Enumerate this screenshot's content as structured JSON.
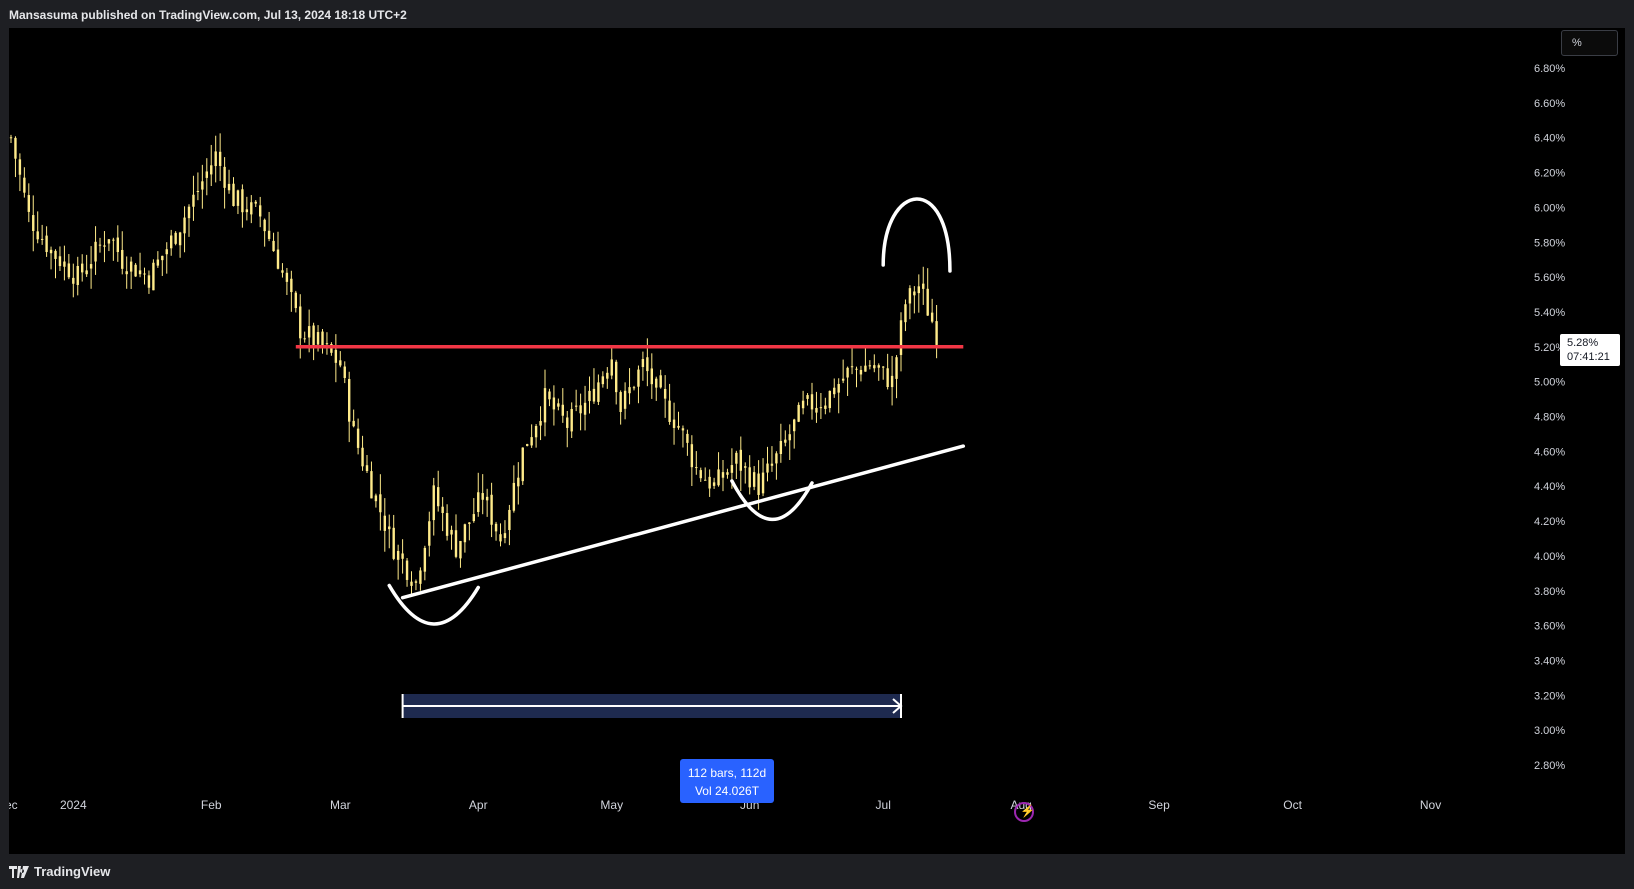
{
  "header": {
    "published": "Mansasuma published on TradingView.com, Jul 13, 2024 18:18 UTC+2"
  },
  "footer": {
    "brand": "TradingView"
  },
  "price_scale": {
    "unit_button": "%"
  },
  "last_price": {
    "value": "5.28%",
    "countdown": "07:41:21"
  },
  "measure": {
    "line1": "112 bars, 112d",
    "line2": "Vol 24.026T"
  },
  "colors": {
    "background": "#000000",
    "candle": "#ffeb8a",
    "resistance": "#f23645",
    "drawing": "#ffffff",
    "measure": "#2962ff"
  },
  "icons": {
    "bolt": "lightning-icon",
    "logo": "tradingview-logo-icon"
  },
  "chart_data": {
    "type": "candlestick",
    "y_unit": "%",
    "ylim": [
      2.7,
      6.9
    ],
    "y_ticks": [
      "6.80%",
      "6.60%",
      "6.40%",
      "6.20%",
      "6.00%",
      "5.80%",
      "5.60%",
      "5.40%",
      "5.20%",
      "5.00%",
      "4.80%",
      "4.60%",
      "4.40%",
      "4.20%",
      "4.00%",
      "3.80%",
      "3.60%",
      "3.40%",
      "3.20%",
      "3.00%",
      "2.80%"
    ],
    "x_ticks": [
      "ec",
      "2024",
      "Feb",
      "Mar",
      "Apr",
      "May",
      "Jun",
      "Jul",
      "Aug",
      "Sep",
      "Oct",
      "Nov"
    ],
    "close_path": [
      [
        "2023-12-18",
        6.4
      ],
      [
        "2023-12-22",
        5.95
      ],
      [
        "2023-12-27",
        5.75
      ],
      [
        "2024-01-02",
        5.6
      ],
      [
        "2024-01-09",
        5.85
      ],
      [
        "2024-01-12",
        5.7
      ],
      [
        "2024-01-18",
        5.6
      ],
      [
        "2024-01-24",
        5.85
      ],
      [
        "2024-01-30",
        6.15
      ],
      [
        "2024-02-02",
        6.3
      ],
      [
        "2024-02-06",
        6.05
      ],
      [
        "2024-02-12",
        5.95
      ],
      [
        "2024-02-16",
        5.7
      ],
      [
        "2024-02-21",
        5.3
      ],
      [
        "2024-02-26",
        5.2
      ],
      [
        "2024-03-01",
        5.1
      ],
      [
        "2024-03-04",
        4.7
      ],
      [
        "2024-03-08",
        4.4
      ],
      [
        "2024-03-13",
        4.05
      ],
      [
        "2024-03-18",
        3.85
      ],
      [
        "2024-03-22",
        4.35
      ],
      [
        "2024-03-27",
        4.05
      ],
      [
        "2024-04-02",
        4.35
      ],
      [
        "2024-04-06",
        4.1
      ],
      [
        "2024-04-11",
        4.6
      ],
      [
        "2024-04-16",
        4.9
      ],
      [
        "2024-04-21",
        4.75
      ],
      [
        "2024-04-26",
        4.9
      ],
      [
        "2024-05-01",
        5.15
      ],
      [
        "2024-05-03",
        4.85
      ],
      [
        "2024-05-08",
        5.1
      ],
      [
        "2024-05-12",
        4.9
      ],
      [
        "2024-05-16",
        4.75
      ],
      [
        "2024-05-20",
        4.5
      ],
      [
        "2024-05-24",
        4.4
      ],
      [
        "2024-05-29",
        4.55
      ],
      [
        "2024-06-03",
        4.4
      ],
      [
        "2024-06-08",
        4.6
      ],
      [
        "2024-06-13",
        4.85
      ],
      [
        "2024-06-18",
        4.9
      ],
      [
        "2024-06-23",
        5.05
      ],
      [
        "2024-06-28",
        5.1
      ],
      [
        "2024-07-03",
        5.0
      ],
      [
        "2024-07-06",
        5.45
      ],
      [
        "2024-07-09",
        5.55
      ],
      [
        "2024-07-12",
        5.35
      ],
      [
        "2024-07-13",
        5.28
      ]
    ],
    "series": [
      {
        "name": "",
        "role": "resistance",
        "points": [
          [
            "2024-02-20",
            5.2
          ],
          [
            "2024-07-19",
            5.2
          ]
        ]
      },
      {
        "name": "",
        "role": "rising trendline",
        "points": [
          [
            "2024-03-15",
            3.76
          ],
          [
            "2024-07-19",
            4.63
          ]
        ]
      }
    ],
    "annotations": {
      "measure_range": [
        "2024-03-15",
        "2024-07-05"
      ],
      "arcs": [
        {
          "type": "cup",
          "around": [
            "2024-03-12",
            "2024-04-01"
          ],
          "level": 3.75
        },
        {
          "type": "cup",
          "around": [
            "2024-05-28",
            "2024-06-15"
          ],
          "level": 4.35
        },
        {
          "type": "cap",
          "around": [
            "2024-07-01",
            "2024-07-16"
          ],
          "level": 5.75
        }
      ]
    }
  }
}
